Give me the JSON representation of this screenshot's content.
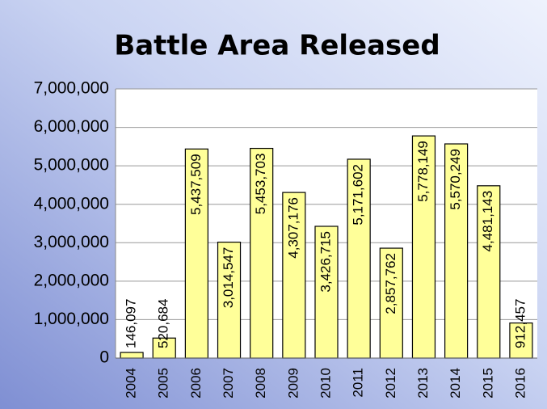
{
  "chart_data": {
    "type": "bar",
    "title": "Battle Area Released",
    "categories": [
      "2004",
      "2005",
      "2006",
      "2007",
      "2008",
      "2009",
      "2010",
      "2011",
      "2012",
      "2013",
      "2014",
      "2015",
      "2016"
    ],
    "values": [
      146097,
      520684,
      5437509,
      3014547,
      5453703,
      4307176,
      3426715,
      5171602,
      2857762,
      5778149,
      5570249,
      4481143,
      912457
    ],
    "value_labels": [
      "146,097",
      "520,684",
      "5,437,509",
      "3,014,547",
      "5,453,703",
      "4,307,176",
      "3,426,715",
      "5,171,602",
      "2,857,762",
      "5,778,149",
      "5,570,249",
      "4,481,143",
      "912,457"
    ],
    "color": "#ffff99",
    "ylim": [
      0,
      7000000
    ],
    "yticks": [
      0,
      {
        "value": 1000000,
        "label": "1,000,000"
      },
      {
        "value": 2000000,
        "label": "2,000,000"
      },
      {
        "value": 3000000,
        "label": "3,000,000"
      },
      {
        "value": 4000000,
        "label": "4,000,000"
      },
      {
        "value": 5000000,
        "label": "5,000,000"
      },
      {
        "value": 6000000,
        "label": "6,000,000"
      },
      {
        "value": 7000000,
        "label": "7,000,000"
      }
    ],
    "grid": true
  }
}
